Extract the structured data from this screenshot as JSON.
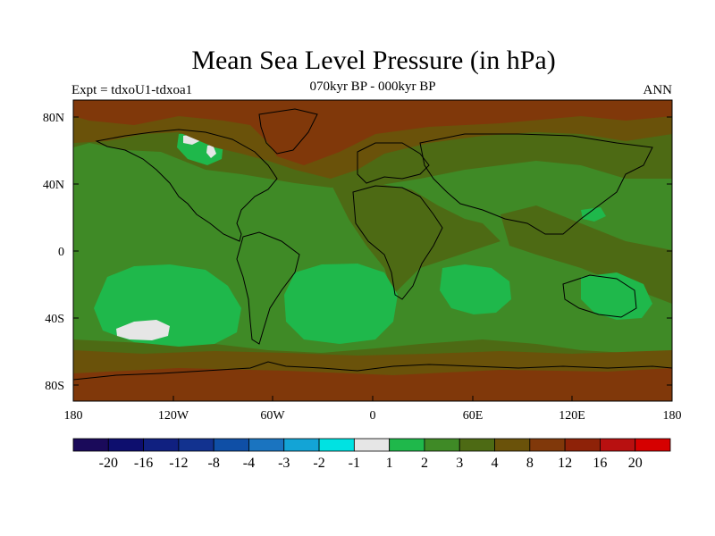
{
  "title": "Mean Sea Level Pressure (in hPa)",
  "subtitle": "070kyr BP - 000kyr BP",
  "left_label": "Expt = tdxoU1-tdxoa1",
  "right_label": "ANN",
  "lat_ticks": [
    "80N",
    "40N",
    "0",
    "40S",
    "80S"
  ],
  "lon_ticks": [
    "180",
    "120W",
    "60W",
    "0",
    "60E",
    "120E",
    "180"
  ],
  "colorbar": {
    "colors": [
      "#1a0a5a",
      "#0d0e6e",
      "#102080",
      "#12328f",
      "#0f4fa6",
      "#1a74c0",
      "#13a4d6",
      "#00e2e2",
      "#e6e6e6",
      "#1fb84b",
      "#3f8a26",
      "#4d6a14",
      "#6a520a",
      "#80380a",
      "#8e2208",
      "#b81010",
      "#d60000"
    ],
    "labels": [
      "-20",
      "-16",
      "-12",
      "-8",
      "-4",
      "-3",
      "-2",
      "-1",
      "1",
      "2",
      "3",
      "4",
      "8",
      "12",
      "16",
      "20"
    ]
  },
  "map_colors": {
    "ocean_dark": "#4d6a14",
    "mid_green": "#3f8a26",
    "bright_green": "#1fb84b",
    "white": "#e6e6e6",
    "brown": "#6a520a",
    "red_brown": "#80380a",
    "coast": "#000000"
  }
}
